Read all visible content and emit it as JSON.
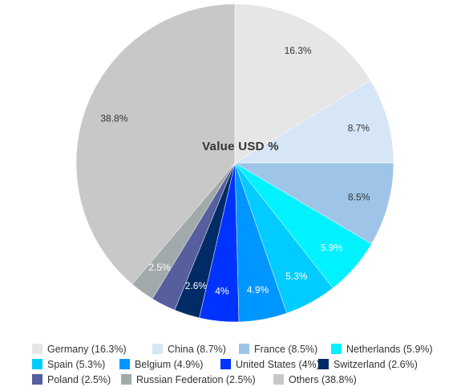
{
  "chart_data": {
    "type": "pie",
    "title": "Value USD %",
    "slices": [
      {
        "name": "Germany",
        "value": 16.3,
        "label": "16.3%",
        "legend": "Germany (16.3%)",
        "color": "#e6e6e6",
        "label_color": "#333333"
      },
      {
        "name": "China",
        "value": 8.7,
        "label": "8.7%",
        "legend": "China (8.7%)",
        "color": "#d6e6f7",
        "label_color": "#333333"
      },
      {
        "name": "France",
        "value": 8.5,
        "label": "8.5%",
        "legend": "France (8.5%)",
        "color": "#9ec5e8",
        "label_color": "#333333"
      },
      {
        "name": "Netherlands",
        "value": 5.9,
        "label": "5.9%",
        "legend": "Netherlands (5.9%)",
        "color": "#00f2ff",
        "label_color": "#ffffff"
      },
      {
        "name": "Spain",
        "value": 5.3,
        "label": "5.3%",
        "legend": "Spain (5.3%)",
        "color": "#00ccff",
        "label_color": "#ffffff"
      },
      {
        "name": "Belgium",
        "value": 4.9,
        "label": "4.9%",
        "legend": "Belgium (4.9%)",
        "color": "#0096ff",
        "label_color": "#ffffff"
      },
      {
        "name": "United States",
        "value": 4,
        "label": "4%",
        "legend": "United States (4%)",
        "color": "#0033ff",
        "label_color": "#ffffff"
      },
      {
        "name": "Switzerland",
        "value": 2.6,
        "label": "2.6%",
        "legend": "Switzerland (2.6%)",
        "color": "#002b66",
        "label_color": "#ffffff"
      },
      {
        "name": "Poland",
        "value": 2.5,
        "label": "",
        "legend": "Poland (2.5%)",
        "color": "#565e9e",
        "label_color": "#ffffff"
      },
      {
        "name": "Russian Federation",
        "value": 2.5,
        "label": "2.5%",
        "legend": "Russian Federation (2.5%)",
        "color": "#a1a9ab",
        "label_color": "#ffffff"
      },
      {
        "name": "Others",
        "value": 38.8,
        "label": "38.8%",
        "legend": "Others (38.8%)",
        "color": "#c8c8c8",
        "label_color": "#333333"
      }
    ],
    "legend_position": "bottom"
  }
}
